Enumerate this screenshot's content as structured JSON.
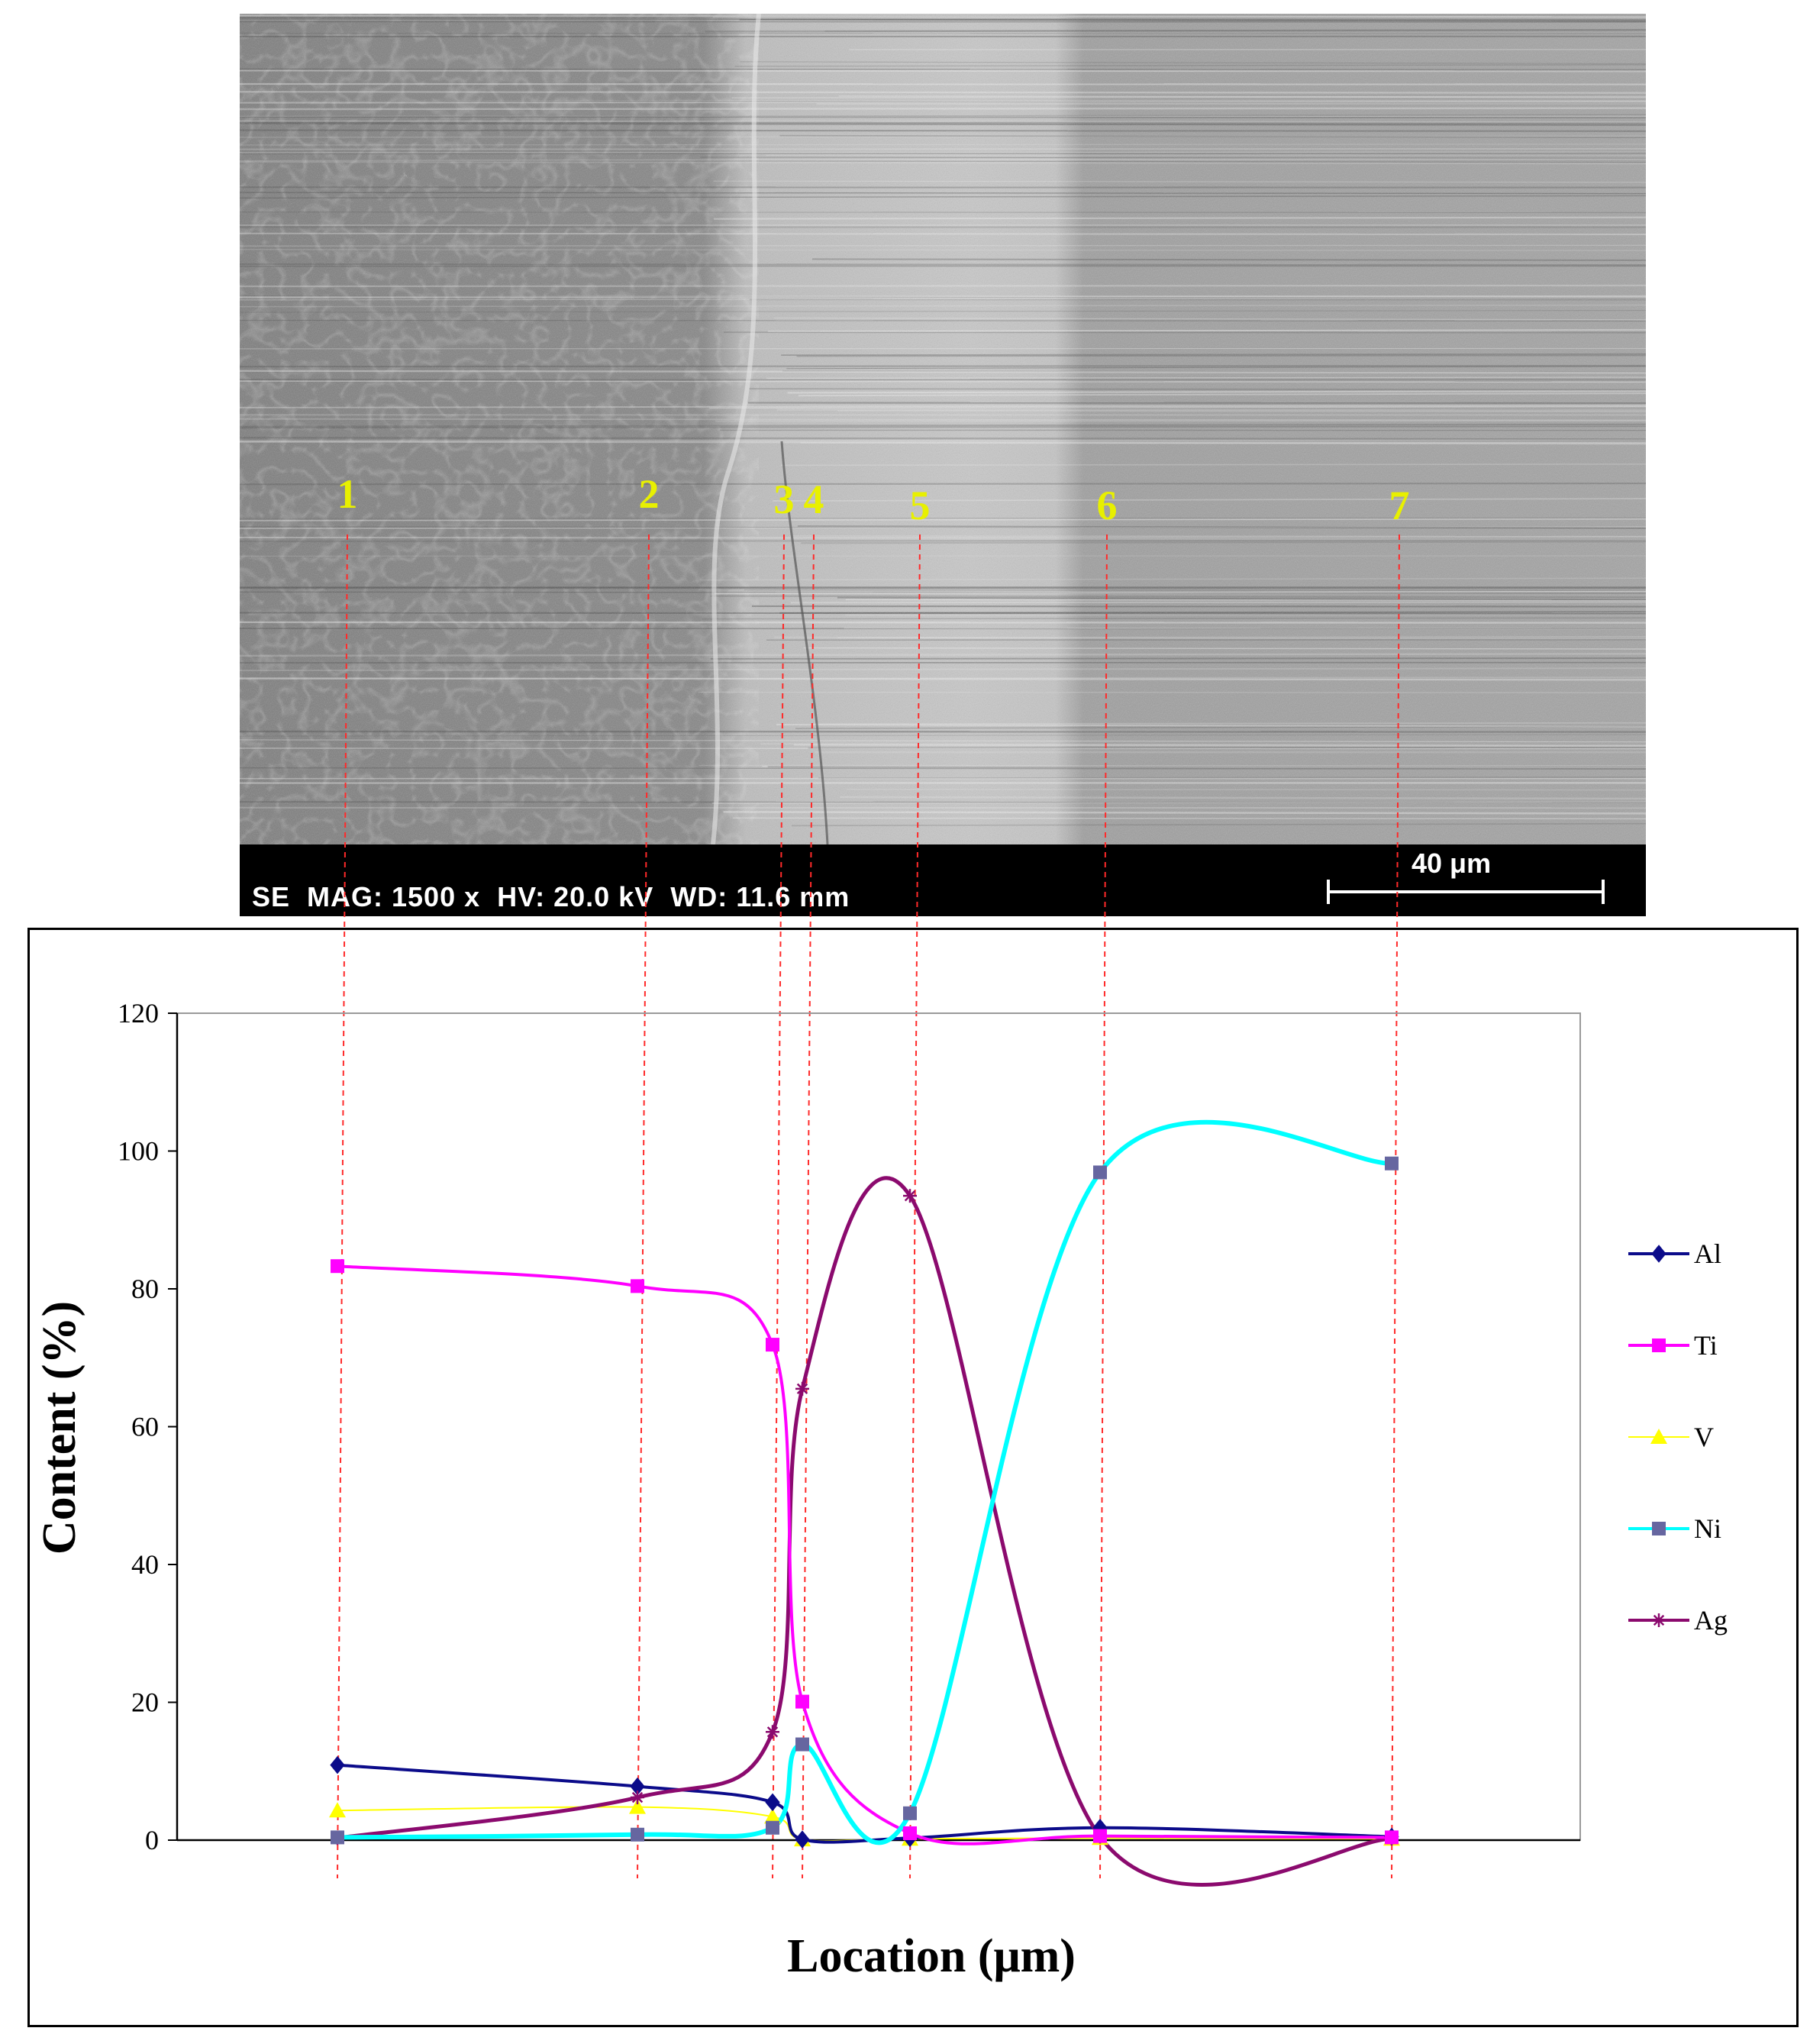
{
  "sem_image": {
    "info_text": "SE  MAG: 1500 x  HV: 20.0 kV  WD: 11.6 mm",
    "scale_bar_label": "40 μm"
  },
  "point_labels": [
    "1",
    "2",
    "3",
    "4",
    "5",
    "6",
    "7"
  ],
  "colors": {
    "Al": "#0b0b8a",
    "Ti": "#ff00ff",
    "V": "#ffff00",
    "Ni": "#00ffff",
    "Ag": "#8b0a6e",
    "Ni_marker": "#6666a0",
    "guide": "#ff2a2a",
    "point_label": "#e8f000"
  },
  "chart_data": {
    "type": "line",
    "title": "",
    "xlabel": "Location (μm)",
    "ylabel": "Content (%)",
    "ylim": [
      0,
      120
    ],
    "yticks": [
      0,
      20,
      40,
      60,
      80,
      100,
      120
    ],
    "x": [
      1,
      2,
      3,
      4,
      5,
      6,
      7
    ],
    "legend_position": "right",
    "grid": false,
    "series": [
      {
        "name": "Al",
        "marker": "diamond",
        "values": [
          10.9,
          7.8,
          5.5,
          0.1,
          0.3,
          1.8,
          0.5
        ]
      },
      {
        "name": "Ti",
        "marker": "square",
        "values": [
          83.3,
          80.4,
          71.9,
          20.1,
          1.0,
          0.6,
          0.4
        ]
      },
      {
        "name": "V",
        "marker": "triangle",
        "values": [
          4.3,
          4.8,
          3.4,
          0.1,
          0.2,
          0.3,
          0.2
        ]
      },
      {
        "name": "Ni",
        "marker": "square",
        "values": [
          0.4,
          0.8,
          1.8,
          13.9,
          3.9,
          96.9,
          98.2
        ]
      },
      {
        "name": "Ag",
        "marker": "star",
        "values": [
          0.3,
          6.2,
          15.7,
          65.5,
          93.5,
          0.5,
          0.2
        ]
      }
    ]
  }
}
